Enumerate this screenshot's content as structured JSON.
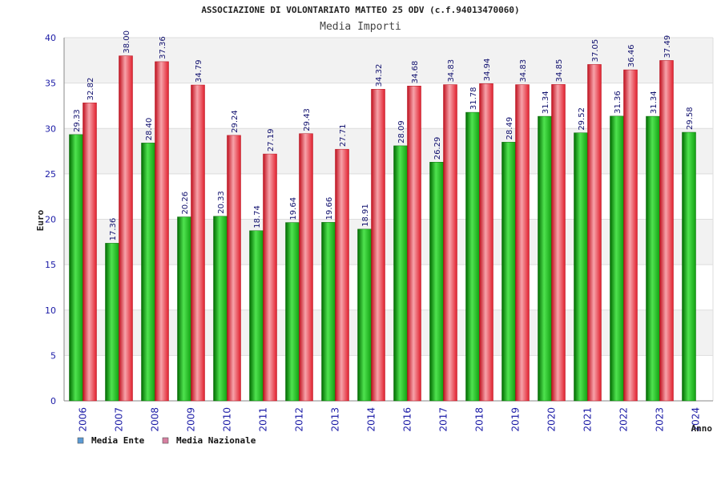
{
  "chart_data": {
    "type": "bar",
    "title": "ASSOCIAZIONE DI VOLONTARIATO MATTEO 25 ODV (c.f.94013470060)",
    "subtitle": "Media Importi",
    "xlabel": "Anno",
    "ylabel": "Euro",
    "ylim": [
      0,
      40
    ],
    "yticks": [
      0,
      5,
      10,
      15,
      20,
      25,
      30,
      35,
      40
    ],
    "grid": true,
    "legend_position": "bottom-left",
    "categories": [
      "2006",
      "2007",
      "2008",
      "2009",
      "2010",
      "2011",
      "2012",
      "2013",
      "2014",
      "2016",
      "2017",
      "2018",
      "2019",
      "2020",
      "2021",
      "2022",
      "2023",
      "2024"
    ],
    "series": [
      {
        "name": "Media Ente",
        "color": "#00aa00",
        "legend_color": "#5b9bd5",
        "values": [
          29.33,
          17.36,
          28.4,
          20.26,
          20.33,
          18.74,
          19.64,
          19.66,
          18.91,
          28.09,
          26.29,
          31.78,
          28.49,
          31.34,
          29.52,
          31.36,
          31.34,
          29.58
        ],
        "labels": [
          "29.33",
          "17.36",
          "28.40",
          "20.26",
          "20.33",
          "18.74",
          "19.64",
          "19.66",
          "18.91",
          "28.09",
          "26.29",
          "31.78",
          "28.49",
          "31.34",
          "29.52",
          "31.36",
          "31.34",
          "29.58"
        ]
      },
      {
        "name": "Media Nazionale",
        "color": "#e81c2c",
        "legend_color": "#d77fa1",
        "values": [
          32.82,
          38.0,
          37.36,
          34.79,
          29.24,
          27.19,
          29.43,
          27.71,
          34.32,
          34.68,
          34.83,
          34.94,
          34.83,
          34.85,
          37.05,
          36.46,
          37.49,
          null
        ],
        "labels": [
          "32.82",
          "38.00",
          "37.36",
          "34.79",
          "29.24",
          "27.19",
          "29.43",
          "27.71",
          "34.32",
          "34.68",
          "34.83",
          "34.94",
          "34.83",
          "34.85",
          "37.05",
          "36.46",
          "37.49",
          ""
        ]
      }
    ]
  }
}
